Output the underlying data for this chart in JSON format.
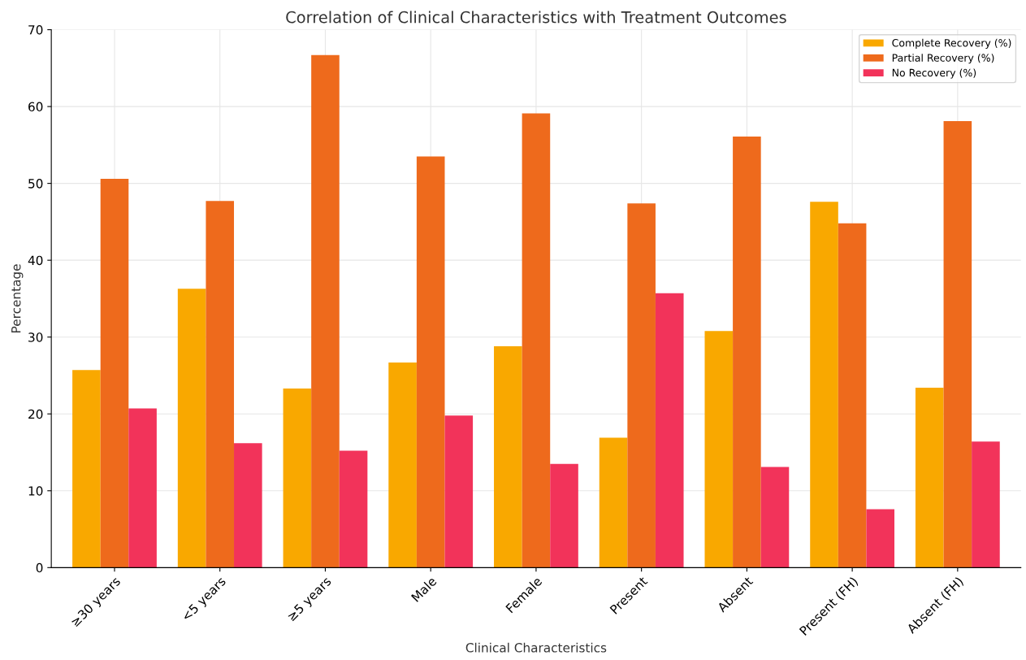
{
  "chart_data": {
    "type": "bar",
    "title": "Correlation of Clinical Characteristics with Treatment Outcomes",
    "xlabel": "Clinical Characteristics",
    "ylabel": "Percentage",
    "categories": [
      "≥30 years",
      "<5 years",
      "≥5 years",
      "Male",
      "Female",
      "Present",
      "Absent",
      "Present (FH)",
      "Absent (FH)"
    ],
    "series": [
      {
        "name": "Complete Recovery (%)",
        "color": "#f9a800",
        "values": [
          25.7,
          36.3,
          23.3,
          26.7,
          28.8,
          16.9,
          30.8,
          47.6,
          23.4
        ]
      },
      {
        "name": "Partial Recovery (%)",
        "color": "#ee6a1c",
        "values": [
          50.6,
          47.7,
          66.7,
          53.5,
          59.1,
          47.4,
          56.1,
          44.8,
          58.1
        ]
      },
      {
        "name": "No Recovery (%)",
        "color": "#f2335a",
        "values": [
          20.7,
          16.2,
          15.2,
          19.8,
          13.5,
          35.7,
          13.1,
          7.6,
          16.4
        ]
      }
    ],
    "ylim": [
      0,
      70
    ],
    "yticks": [
      0,
      10,
      20,
      30,
      40,
      50,
      60,
      70
    ],
    "grid": true,
    "legend": "top right"
  }
}
